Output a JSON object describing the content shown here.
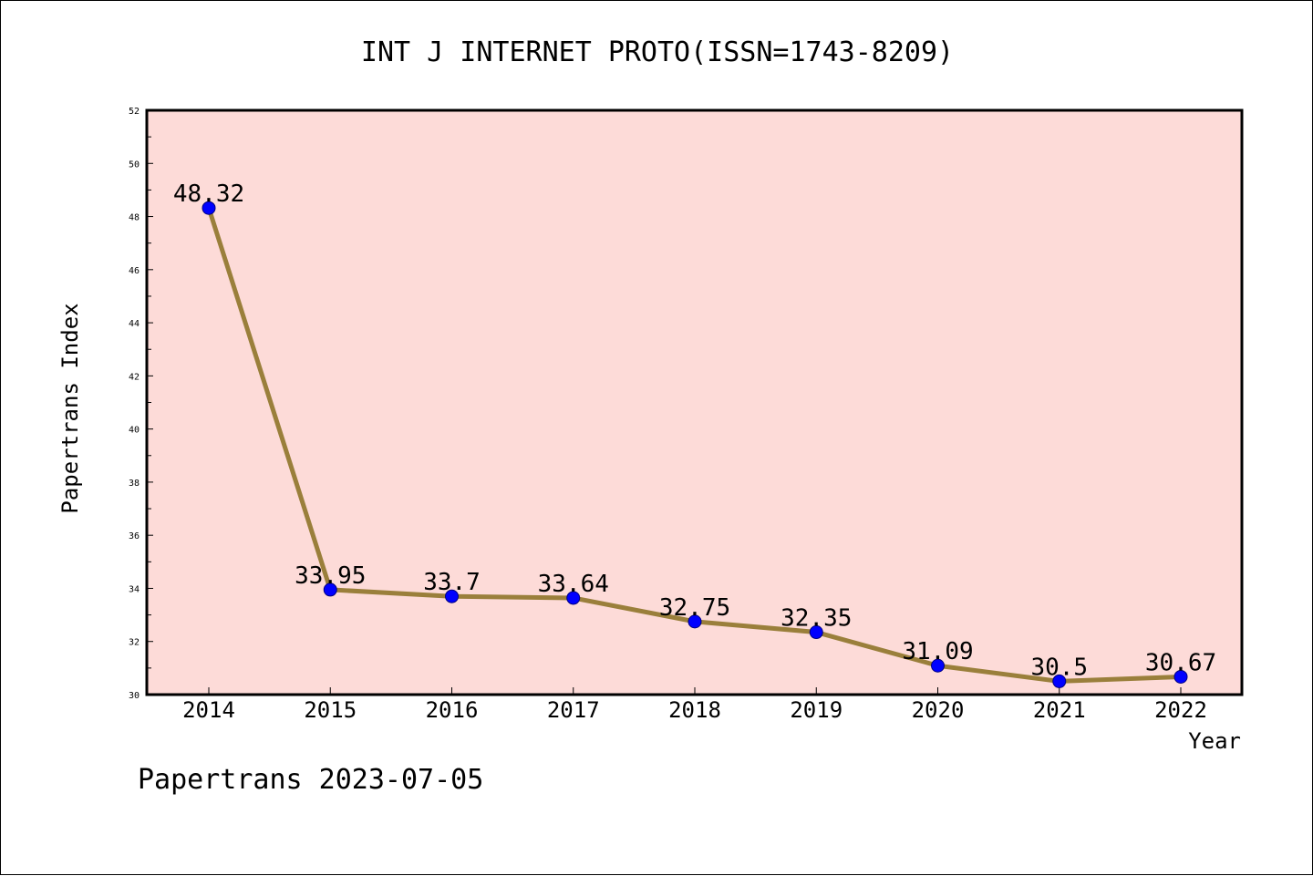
{
  "chart_data": {
    "type": "line",
    "title": "INT J INTERNET PROTO(ISSN=1743-8209)",
    "xlabel": "Year",
    "ylabel": "Papertrans Index",
    "categories": [
      "2014",
      "2015",
      "2016",
      "2017",
      "2018",
      "2019",
      "2020",
      "2021",
      "2022"
    ],
    "series": [
      {
        "values": [
          48.32,
          33.95,
          33.7,
          33.64,
          32.75,
          32.35,
          31.09,
          30.5,
          30.67
        ],
        "data_labels": [
          "48.32",
          "33.95",
          "33.7",
          "33.64",
          "32.75",
          "32.35",
          "31.09",
          "30.5",
          "30.67"
        ]
      }
    ],
    "ylim": [
      30,
      52
    ],
    "yticks": [
      "30",
      "32",
      "34",
      "36",
      "38",
      "40",
      "42",
      "44",
      "46",
      "48",
      "50",
      "52"
    ],
    "grid": false,
    "colors": {
      "plot_background": "#fddbd8",
      "line": "#9a7f3b",
      "marker_fill": "#0000ff",
      "marker_stroke": "#000080"
    }
  },
  "footer": "Papertrans 2023-07-05"
}
